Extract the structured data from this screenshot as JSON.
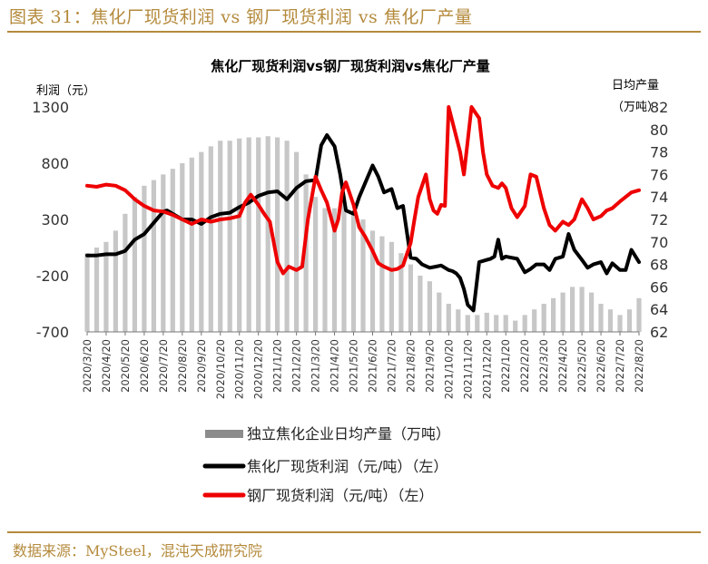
{
  "figure": {
    "title": "图表 31：焦化厂现货利润 vs 钢厂现货利润 vs 焦化厂产量",
    "source": "数据来源：MySteel，混沌天成研究院"
  },
  "colors": {
    "accent": "#b48a3c",
    "coke_profit": "#000000",
    "steel_profit": "#ee0000",
    "output_bars": "#bdbdbd"
  },
  "chart_data": {
    "type": "bar+line",
    "title": "焦化厂现货利润vs钢厂现货利润vs焦化厂产量",
    "ylabel_left": "利润（元）",
    "ylabel_right": [
      "日均产量",
      "（万吨）"
    ],
    "ylim_left": [
      -700,
      1300
    ],
    "yticks_left": [
      "1300",
      "800",
      "300",
      "-200",
      "-700"
    ],
    "ylim_right": [
      62,
      82
    ],
    "yticks_right": [
      "82",
      "80",
      "78",
      "76",
      "74",
      "72",
      "70",
      "68",
      "66",
      "64",
      "62"
    ],
    "x_ticks": [
      "2020/3/20",
      "2020/4/20",
      "2020/5/20",
      "2020/6/20",
      "2020/7/20",
      "2020/8/20",
      "2020/9/20",
      "2020/10/20",
      "2020/11/20",
      "2020/12/20",
      "2021/1/20",
      "2021/2/20",
      "2021/3/20",
      "2021/4/20",
      "2021/5/20",
      "2021/6/20",
      "2021/7/20",
      "2021/8/20",
      "2021/9/20",
      "2021/10/20",
      "2021/11/20",
      "2021/12/20",
      "2022/1/20",
      "2022/2/20",
      "2022/3/20",
      "2022/4/20",
      "2022/5/20",
      "2022/6/20",
      "2022/7/20",
      "2022/8/20"
    ],
    "legend_position": "bottom",
    "grid": false,
    "series": [
      {
        "name": "独立焦化企业日均产量（万吨）",
        "type": "bar",
        "axis": "right",
        "x": [
          0,
          0.5,
          1,
          1.5,
          2,
          2.5,
          3,
          3.5,
          4,
          4.5,
          5,
          5.5,
          6,
          6.5,
          7,
          7.5,
          8,
          8.5,
          9,
          9.5,
          10,
          10.5,
          11,
          11.5,
          12,
          12.5,
          13,
          13.5,
          14,
          14.5,
          15,
          15.5,
          16,
          16.5,
          17,
          17.5,
          18,
          18.5,
          19,
          19.5,
          20,
          20.5,
          21,
          21.5,
          22,
          22.5,
          23,
          23.5,
          24,
          24.5,
          25,
          25.5,
          26,
          26.5,
          27,
          27.5,
          28,
          28.5,
          29
        ],
        "values": [
          69,
          69.5,
          70,
          71,
          72.5,
          74,
          75,
          75.5,
          76,
          76.5,
          77,
          77.5,
          78,
          78.5,
          79,
          79,
          79.2,
          79.3,
          79.3,
          79.4,
          79.3,
          79,
          78,
          76,
          74,
          73,
          73,
          73.5,
          72.5,
          72,
          71,
          70.5,
          70,
          69,
          68,
          67,
          66.5,
          65.5,
          64.5,
          64,
          63.5,
          63.5,
          63.7,
          63.5,
          63.5,
          63,
          63.5,
          64,
          64.5,
          65,
          65.5,
          66,
          66,
          65.5,
          64.5,
          64,
          63.5,
          64,
          65
        ]
      },
      {
        "name": "焦化厂现货利润（元/吨）（左）",
        "type": "line",
        "axis": "left",
        "x": [
          0,
          0.5,
          1,
          1.5,
          2,
          2.5,
          3,
          3.5,
          4,
          4.2,
          4.5,
          5,
          5.5,
          6,
          6.5,
          7,
          7.5,
          8,
          8.5,
          9,
          9.5,
          10,
          10.5,
          11,
          11.5,
          12,
          12.3,
          12.6,
          13,
          13.3,
          13.6,
          14,
          14.3,
          14.6,
          15,
          15.3,
          15.6,
          16,
          16.3,
          16.6,
          17,
          17.3,
          17.6,
          18,
          18.3,
          18.6,
          19,
          19.2,
          19.4,
          19.6,
          19.8,
          20,
          20.3,
          20.6,
          21,
          21.2,
          21.4,
          21.6,
          21.8,
          22,
          22.3,
          22.6,
          23,
          23.3,
          23.6,
          24,
          24.3,
          24.6,
          25,
          25.3,
          25.6,
          26,
          26.3,
          26.6,
          27,
          27.3,
          27.6,
          28,
          28.3,
          28.6,
          29
        ],
        "values": [
          -20,
          -20,
          -10,
          -10,
          20,
          120,
          170,
          270,
          370,
          380,
          350,
          300,
          300,
          260,
          320,
          350,
          360,
          410,
          450,
          510,
          540,
          550,
          480,
          580,
          640,
          650,
          960,
          1050,
          950,
          700,
          380,
          350,
          500,
          620,
          780,
          680,
          540,
          570,
          400,
          420,
          -40,
          -50,
          -100,
          -130,
          -120,
          -110,
          -150,
          -160,
          -180,
          -220,
          -320,
          -460,
          -510,
          -80,
          -60,
          -50,
          -30,
          120,
          -50,
          -30,
          -40,
          -50,
          -170,
          -140,
          -100,
          -100,
          -150,
          -50,
          -30,
          170,
          30,
          -60,
          -130,
          -100,
          -80,
          -180,
          -90,
          -150,
          -150,
          30,
          -80
        ]
      },
      {
        "name": "钢厂现货利润（元/吨）（左）",
        "type": "line",
        "axis": "left",
        "x": [
          0,
          0.5,
          1,
          1.5,
          2,
          2.5,
          3,
          3.5,
          4,
          4.5,
          5,
          5.5,
          6,
          6.5,
          7,
          7.5,
          8,
          8.3,
          8.6,
          9,
          9.3,
          9.6,
          10,
          10.3,
          10.6,
          11,
          11.3,
          11.6,
          12,
          12.3,
          12.6,
          13,
          13.2,
          13.4,
          13.6,
          14,
          14.3,
          14.6,
          15,
          15.3,
          15.6,
          16,
          16.3,
          16.6,
          17,
          17.2,
          17.4,
          17.6,
          17.8,
          18,
          18.2,
          18.4,
          18.6,
          18.8,
          19,
          19.3,
          19.6,
          19.8,
          20,
          20.2,
          20.4,
          20.6,
          20.8,
          21,
          21.3,
          21.6,
          21.8,
          22,
          22.3,
          22.6,
          23,
          23.3,
          23.6,
          24,
          24.3,
          24.6,
          25,
          25.3,
          25.6,
          26,
          26.3,
          26.6,
          27,
          27.3,
          27.6,
          28,
          28.3,
          28.6,
          29
        ],
        "values": [
          600,
          590,
          610,
          600,
          560,
          480,
          420,
          380,
          370,
          340,
          300,
          260,
          300,
          280,
          300,
          310,
          330,
          450,
          520,
          430,
          350,
          280,
          -80,
          -180,
          -120,
          -150,
          -120,
          300,
          680,
          560,
          450,
          200,
          300,
          540,
          630,
          430,
          230,
          150,
          20,
          -90,
          -120,
          -150,
          -140,
          -110,
          90,
          300,
          500,
          600,
          700,
          480,
          380,
          350,
          430,
          420,
          1300,
          1100,
          900,
          700,
          1000,
          1300,
          1250,
          1200,
          900,
          700,
          600,
          580,
          620,
          580,
          400,
          320,
          420,
          700,
          680,
          400,
          250,
          200,
          280,
          250,
          300,
          480,
          400,
          300,
          330,
          380,
          400,
          460,
          500,
          540,
          560
        ]
      }
    ]
  }
}
